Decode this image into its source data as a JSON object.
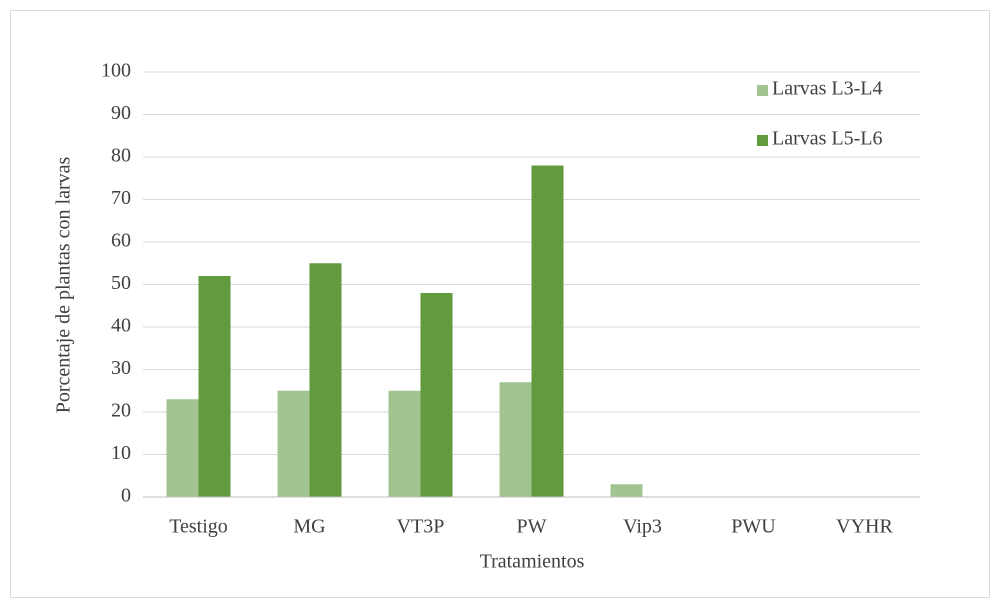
{
  "chart_data": {
    "type": "bar",
    "x_label": "Tratamientos",
    "y_label": "Porcentaje de plantas con larvas",
    "categories": [
      "Testigo",
      "MG",
      "VT3P",
      "PW",
      "Vip3",
      "PWU",
      "VYHR"
    ],
    "series": [
      {
        "name": "Larvas L3-L4",
        "color": "#a1c490",
        "values": [
          23,
          25,
          25,
          27,
          3,
          0,
          0
        ]
      },
      {
        "name": "Larvas L5-L6",
        "color": "#629a3e",
        "values": [
          52,
          55,
          48,
          78,
          0,
          0,
          0
        ]
      }
    ],
    "ylim": [
      0,
      100
    ],
    "yticks": [
      0,
      10,
      20,
      30,
      40,
      50,
      60,
      70,
      80,
      90,
      100
    ],
    "grid": true,
    "legend": "top-right"
  }
}
